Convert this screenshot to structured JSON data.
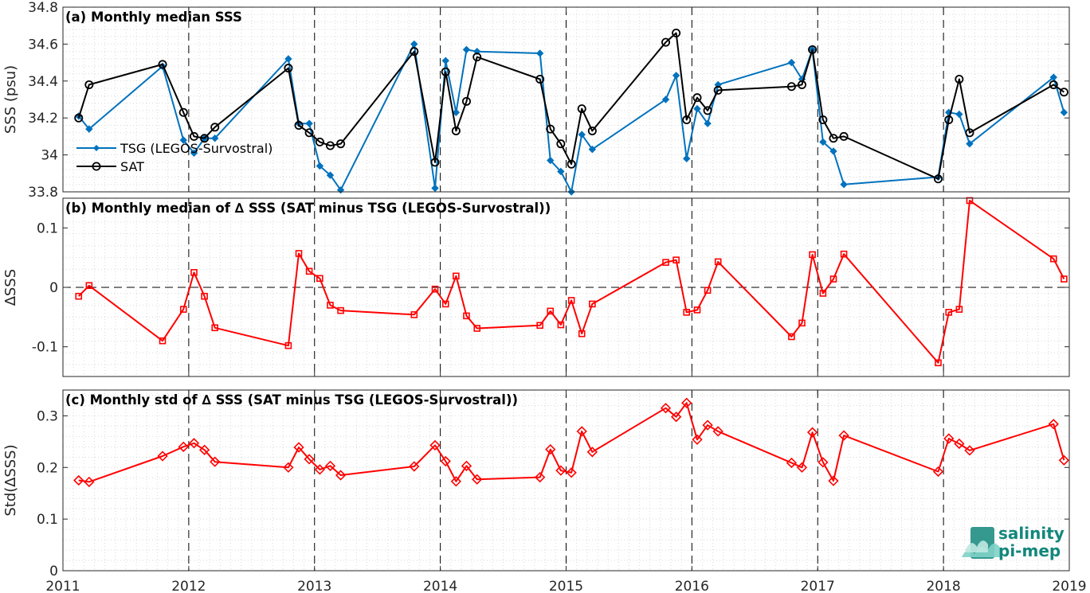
{
  "x_axis": {
    "ticks": [
      "2011",
      "2012",
      "2013",
      "2014",
      "2015",
      "2016",
      "2017",
      "2018",
      "2019"
    ]
  },
  "logo": {
    "line1": "salinity",
    "line2": "pi-mep",
    "color": "#13877c"
  },
  "colors": {
    "tsg": "#0072bd",
    "sat": "#000000",
    "delta": "#ff0000",
    "grid": "#d9d9d9"
  },
  "chart_data": [
    {
      "id": "a",
      "type": "line",
      "title": "(a) Monthly median SSS",
      "xlabel": "",
      "ylabel": "SSS (psu)",
      "xlim": [
        2011,
        2019
      ],
      "ylim": [
        33.8,
        34.8
      ],
      "yticks": [
        33.8,
        34,
        34.2,
        34.4,
        34.6,
        34.8
      ],
      "ytick_labels": [
        "33.8",
        "34",
        "34.2",
        "34.4",
        "34.6",
        "34.8"
      ],
      "grid": "dotted",
      "legend": "lower-left",
      "series": [
        {
          "name": "TSG (LEGOS-Survostral)",
          "color": "#0072bd",
          "marker": "diamond-filled",
          "x": [
            2011.125,
            2011.208,
            2011.792,
            2011.958,
            2012.042,
            2012.125,
            2012.208,
            2012.792,
            2012.875,
            2012.958,
            2013.042,
            2013.125,
            2013.208,
            2013.792,
            2013.958,
            2014.042,
            2014.125,
            2014.208,
            2014.292,
            2014.792,
            2014.875,
            2014.958,
            2015.042,
            2015.125,
            2015.208,
            2015.792,
            2015.875,
            2015.958,
            2016.042,
            2016.125,
            2016.208,
            2016.792,
            2016.875,
            2016.958,
            2017.042,
            2017.125,
            2017.208,
            2017.958,
            2018.042,
            2018.125,
            2018.208,
            2018.875,
            2018.958
          ],
          "y": [
            34.21,
            34.14,
            34.48,
            34.08,
            34.01,
            34.09,
            34.09,
            34.52,
            34.17,
            34.17,
            33.94,
            33.89,
            33.81,
            34.6,
            33.82,
            34.51,
            34.23,
            34.57,
            34.56,
            34.55,
            33.97,
            33.91,
            33.8,
            34.11,
            34.03,
            34.3,
            34.43,
            33.98,
            34.25,
            34.17,
            34.38,
            34.5,
            34.41,
            34.57,
            34.07,
            34.02,
            33.84,
            33.88,
            34.23,
            34.22,
            34.06,
            34.42,
            34.23
          ]
        },
        {
          "name": "SAT",
          "color": "#000000",
          "marker": "circle-open",
          "x": [
            2011.125,
            2011.208,
            2011.792,
            2011.958,
            2012.042,
            2012.125,
            2012.208,
            2012.792,
            2012.875,
            2012.958,
            2013.042,
            2013.125,
            2013.208,
            2013.792,
            2013.958,
            2014.042,
            2014.125,
            2014.208,
            2014.292,
            2014.792,
            2014.875,
            2014.958,
            2015.042,
            2015.125,
            2015.208,
            2015.792,
            2015.875,
            2015.958,
            2016.042,
            2016.125,
            2016.208,
            2016.792,
            2016.875,
            2016.958,
            2017.042,
            2017.125,
            2017.208,
            2017.958,
            2018.042,
            2018.125,
            2018.208,
            2018.875,
            2018.958
          ],
          "y": [
            34.2,
            34.38,
            34.49,
            34.23,
            34.1,
            34.09,
            34.15,
            34.47,
            34.16,
            34.12,
            34.07,
            34.05,
            34.06,
            34.56,
            33.96,
            34.45,
            34.13,
            34.29,
            34.53,
            34.41,
            34.14,
            34.06,
            33.95,
            34.25,
            34.13,
            34.61,
            34.66,
            34.19,
            34.31,
            34.24,
            34.35,
            34.37,
            34.38,
            34.57,
            34.19,
            34.09,
            34.1,
            33.87,
            34.19,
            34.41,
            34.12,
            34.38,
            34.34
          ]
        }
      ]
    },
    {
      "id": "b",
      "type": "line",
      "title": "(b) Monthly median of ∆ SSS (SAT minus TSG (LEGOS-Survostral))",
      "xlabel": "",
      "ylabel": "∆SSS",
      "xlim": [
        2011,
        2019
      ],
      "ylim": [
        -0.15,
        0.15
      ],
      "yticks": [
        -0.1,
        0,
        0.1
      ],
      "ytick_labels": [
        "-0.1",
        "0",
        "0.1"
      ],
      "zero_line": "dashed",
      "grid": "dotted",
      "series": [
        {
          "color": "#ff0000",
          "marker": "square-open",
          "x": [
            2011.125,
            2011.208,
            2011.792,
            2011.958,
            2012.042,
            2012.125,
            2012.208,
            2012.792,
            2012.875,
            2012.958,
            2013.042,
            2013.125,
            2013.208,
            2013.792,
            2013.958,
            2014.042,
            2014.125,
            2014.208,
            2014.292,
            2014.792,
            2014.875,
            2014.958,
            2015.042,
            2015.125,
            2015.208,
            2015.792,
            2015.875,
            2015.958,
            2016.042,
            2016.125,
            2016.208,
            2016.792,
            2016.875,
            2016.958,
            2017.042,
            2017.125,
            2017.208,
            2017.958,
            2018.042,
            2018.125,
            2018.208,
            2018.875,
            2018.958
          ],
          "y": [
            -0.015,
            0.003,
            -0.09,
            -0.037,
            0.025,
            -0.015,
            -0.068,
            -0.098,
            0.057,
            0.027,
            0.015,
            -0.03,
            -0.039,
            -0.046,
            -0.003,
            -0.028,
            0.019,
            -0.048,
            -0.069,
            -0.064,
            -0.04,
            -0.063,
            -0.022,
            -0.078,
            -0.028,
            0.042,
            0.046,
            -0.042,
            -0.038,
            -0.005,
            0.043,
            -0.083,
            -0.06,
            0.055,
            -0.01,
            0.014,
            0.056,
            -0.127,
            -0.042,
            -0.037,
            0.146,
            0.048,
            0.014
          ]
        }
      ]
    },
    {
      "id": "c",
      "type": "line",
      "title": "(c) Monthly std of ∆ SSS (SAT minus TSG (LEGOS-Survostral))",
      "xlabel": "",
      "ylabel": "Std(∆SSS)",
      "xlim": [
        2011,
        2019
      ],
      "ylim": [
        0,
        0.35
      ],
      "yticks": [
        0,
        0.1,
        0.2,
        0.3
      ],
      "ytick_labels": [
        "0",
        "0.1",
        "0.2",
        "0.3"
      ],
      "grid": "dotted",
      "series": [
        {
          "color": "#ff0000",
          "marker": "diamond-open",
          "x": [
            2011.125,
            2011.208,
            2011.792,
            2011.958,
            2012.042,
            2012.125,
            2012.208,
            2012.792,
            2012.875,
            2012.958,
            2013.042,
            2013.125,
            2013.208,
            2013.792,
            2013.958,
            2014.042,
            2014.125,
            2014.208,
            2014.292,
            2014.792,
            2014.875,
            2014.958,
            2015.042,
            2015.125,
            2015.208,
            2015.792,
            2015.875,
            2015.958,
            2016.042,
            2016.125,
            2016.208,
            2016.792,
            2016.875,
            2016.958,
            2017.042,
            2017.125,
            2017.208,
            2017.958,
            2018.042,
            2018.125,
            2018.208,
            2018.875,
            2018.958
          ],
          "y": [
            0.175,
            0.172,
            0.222,
            0.24,
            0.247,
            0.234,
            0.211,
            0.2,
            0.239,
            0.216,
            0.196,
            0.203,
            0.185,
            0.202,
            0.243,
            0.212,
            0.173,
            0.203,
            0.177,
            0.181,
            0.235,
            0.194,
            0.19,
            0.27,
            0.23,
            0.315,
            0.298,
            0.325,
            0.254,
            0.282,
            0.27,
            0.209,
            0.2,
            0.268,
            0.21,
            0.174,
            0.262,
            0.192,
            0.256,
            0.246,
            0.233,
            0.284,
            0.214
          ]
        }
      ]
    }
  ]
}
